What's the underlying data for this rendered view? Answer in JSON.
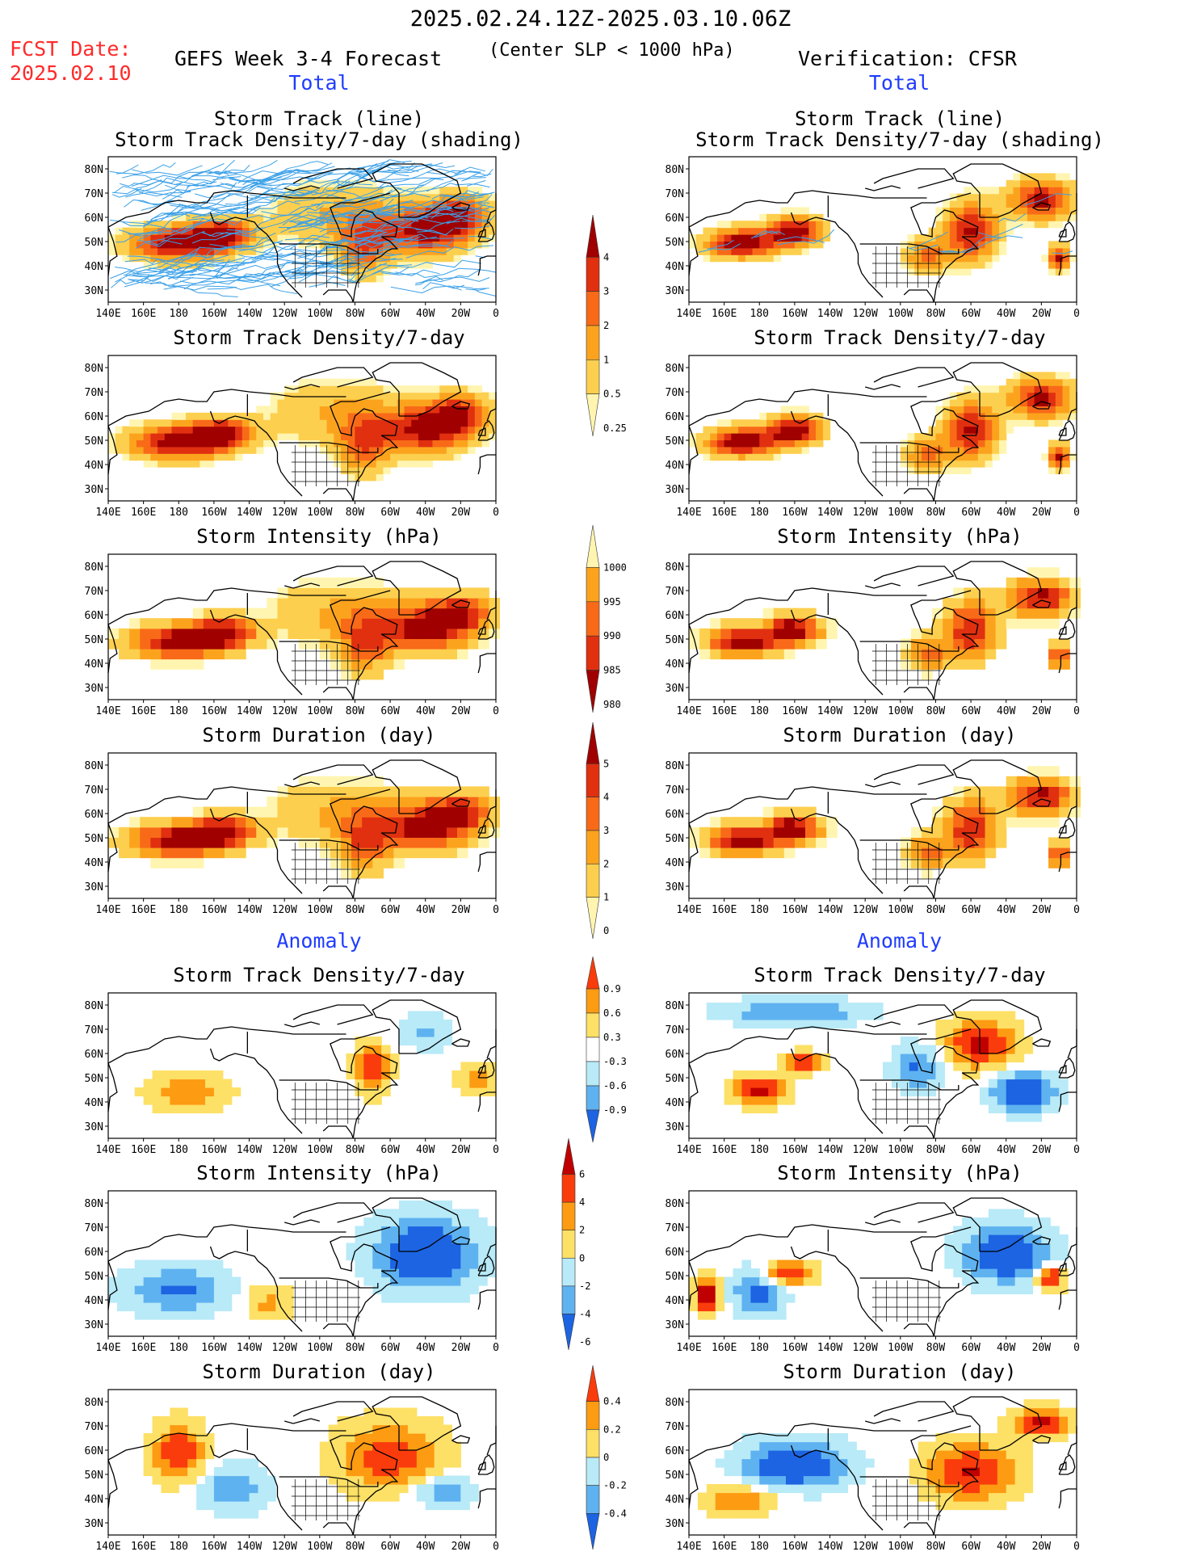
{
  "header": {
    "date_range": "2025.02.24.12Z-2025.03.10.06Z",
    "fcst_label": "FCST Date:",
    "fcst_date": "2025.02.10",
    "left_title": "GEFS Week 3-4 Forecast",
    "criterion": "(Center SLP < 1000 hPa)",
    "right_title": "Verification: CFSR"
  },
  "sections": {
    "total_left": "Total",
    "total_right": "Total",
    "anomaly_left": "Anomaly",
    "anomaly_right": "Anomaly"
  },
  "panel_titles": {
    "track_line": "Storm Track (line)",
    "track_shading": "Storm Track Density/7-day (shading)",
    "density": "Storm Track Density/7-day",
    "intensity": "Storm Intensity (hPa)",
    "duration": "Storm Duration (day)"
  },
  "axes": {
    "lat_labels": [
      "80N",
      "70N",
      "60N",
      "50N",
      "40N",
      "30N"
    ],
    "lon_labels": [
      "140E",
      "160E",
      "180",
      "160W",
      "140W",
      "120W",
      "100W",
      "80W",
      "60W",
      "40W",
      "20W",
      "0"
    ]
  },
  "colorbars": {
    "density_total": {
      "labels": [
        "4",
        "3",
        "2",
        "1",
        "0.5",
        "0.25"
      ],
      "colors": [
        "#a00000",
        "#e03010",
        "#f86a18",
        "#fca31e",
        "#fdcf4e",
        "#fff5b0"
      ]
    },
    "intensity_total": {
      "labels": [
        "1000",
        "995",
        "990",
        "985",
        "980"
      ],
      "colors": [
        "#fff5b0",
        "#fca31e",
        "#f86a18",
        "#e03010",
        "#a00000"
      ]
    },
    "duration_total": {
      "labels": [
        "5",
        "4",
        "3",
        "2",
        "1",
        "0"
      ],
      "colors": [
        "#a00000",
        "#e03010",
        "#f86a18",
        "#fca31e",
        "#fdcf4e",
        "#fff5b0"
      ]
    },
    "density_anom": {
      "labels": [
        "0.9",
        "0.6",
        "0.3",
        "-0.3",
        "-0.6",
        "-0.9"
      ],
      "colors": [
        "#fa3c0c",
        "#fd9b12",
        "#fde066",
        "#ffffff",
        "#b8eaf8",
        "#5fb2f0",
        "#1c64e2"
      ]
    },
    "intensity_anom": {
      "labels": [
        "6",
        "4",
        "2",
        "0",
        "-2",
        "-4",
        "-6"
      ],
      "colors": [
        "#c00000",
        "#fa3c0c",
        "#fd9b12",
        "#fde066",
        "#b8eaf8",
        "#5fb2f0",
        "#1c64e2"
      ]
    },
    "duration_anom": {
      "labels": [
        "0.4",
        "0.2",
        "0",
        "-0.2",
        "-0.4"
      ],
      "colors": [
        "#fa3c0c",
        "#fd9b12",
        "#fde066",
        "#b8eaf8",
        "#5fb2f0",
        "#1c64e2"
      ]
    }
  },
  "colors": {
    "track_line": "#3aa0e8",
    "coastline": "#000000",
    "total_low": "#fff5b0",
    "total_high": "#a00000",
    "anom_pos": "#fa3c0c",
    "anom_neg": "#1c64e2"
  }
}
